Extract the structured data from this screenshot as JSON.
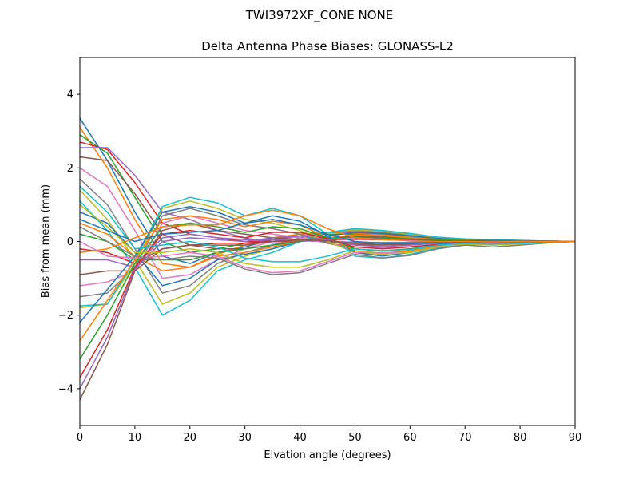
{
  "figure": {
    "suptitle": "TWI3972XF_CONE  NONE"
  },
  "chart_data": {
    "type": "line",
    "title": "Delta Antenna Phase Biases: GLONASS-L2",
    "xlabel": "Elvation angle (degrees)",
    "ylabel": "Bias from mean (mm)",
    "xlim": [
      0,
      90
    ],
    "ylim": [
      -5,
      5
    ],
    "x_ticks": [
      0,
      10,
      20,
      30,
      40,
      50,
      60,
      70,
      80,
      90
    ],
    "y_ticks": [
      -4,
      -2,
      0,
      2,
      4
    ],
    "x_tick_labels": [
      "0",
      "10",
      "20",
      "30",
      "40",
      "50",
      "60",
      "70",
      "80",
      "90"
    ],
    "y_tick_labels": [
      "−4",
      "−2",
      "0",
      "2",
      "4"
    ],
    "grid": false,
    "legend": "none",
    "x": [
      0,
      5,
      10,
      15,
      20,
      25,
      30,
      35,
      40,
      45,
      50,
      55,
      60,
      65,
      70,
      75,
      80,
      85,
      90
    ],
    "colors": [
      "#1f77b4",
      "#ff7f0e",
      "#2ca02c",
      "#d62728",
      "#9467bd",
      "#8c564b",
      "#e377c2",
      "#7f7f7f",
      "#bcbd22",
      "#17becf"
    ],
    "series": [
      {
        "values": [
          3.35,
          2.2,
          0.8,
          -0.4,
          -0.6,
          -0.3,
          -0.15,
          0.05,
          0.2,
          0.25,
          0.25,
          0.2,
          0.15,
          0.1,
          0.05,
          0.05,
          0.03,
          0.01,
          0
        ]
      },
      {
        "values": [
          3.1,
          2.0,
          0.6,
          -0.6,
          -0.7,
          -0.35,
          -0.1,
          0.1,
          0.2,
          0.25,
          0.22,
          0.18,
          0.12,
          0.08,
          0.05,
          0.04,
          0.02,
          0.01,
          0
        ]
      },
      {
        "values": [
          2.9,
          2.4,
          1.2,
          0.0,
          -0.3,
          -0.2,
          -0.05,
          0.05,
          0.15,
          0.2,
          0.2,
          0.15,
          0.1,
          0.06,
          0.04,
          0.03,
          0.02,
          0.01,
          0
        ]
      },
      {
        "values": [
          2.7,
          2.5,
          1.6,
          0.5,
          0.2,
          0.1,
          0.0,
          0.0,
          0.05,
          0.1,
          0.12,
          0.1,
          0.07,
          0.05,
          0.03,
          0.02,
          0.01,
          0.0,
          0
        ]
      },
      {
        "values": [
          2.55,
          2.55,
          1.8,
          0.8,
          0.6,
          0.3,
          0.1,
          -0.05,
          0.0,
          0.05,
          0.08,
          0.07,
          0.05,
          0.03,
          0.02,
          0.01,
          0.01,
          0.0,
          0
        ]
      },
      {
        "values": [
          2.3,
          2.2,
          1.3,
          0.2,
          -0.1,
          -0.2,
          -0.2,
          -0.1,
          0.0,
          0.1,
          0.15,
          0.12,
          0.08,
          0.05,
          0.03,
          0.02,
          0.01,
          0.0,
          0
        ]
      },
      {
        "values": [
          2.0,
          1.5,
          0.3,
          -1.0,
          -0.9,
          -0.5,
          -0.2,
          0.0,
          0.15,
          0.25,
          0.27,
          0.22,
          0.15,
          0.09,
          0.05,
          0.04,
          0.02,
          0.01,
          0
        ]
      },
      {
        "values": [
          1.7,
          1.0,
          -0.2,
          -1.4,
          -1.2,
          -0.6,
          -0.3,
          -0.1,
          0.1,
          0.25,
          0.3,
          0.25,
          0.18,
          0.1,
          0.06,
          0.04,
          0.02,
          0.01,
          0
        ]
      },
      {
        "values": [
          1.4,
          0.6,
          -0.5,
          -1.7,
          -1.4,
          -0.7,
          -0.4,
          -0.2,
          0.05,
          0.25,
          0.32,
          0.28,
          0.2,
          0.11,
          0.06,
          0.04,
          0.02,
          0.01,
          0
        ]
      },
      {
        "values": [
          1.1,
          0.3,
          -0.7,
          -2.0,
          -1.6,
          -0.8,
          -0.5,
          -0.3,
          0.0,
          0.25,
          0.35,
          0.3,
          0.22,
          0.12,
          0.07,
          0.05,
          0.02,
          0.01,
          0
        ]
      },
      {
        "values": [
          0.8,
          0.5,
          -0.3,
          -1.2,
          -1.0,
          -0.5,
          -0.35,
          -0.2,
          0.0,
          0.15,
          0.25,
          0.22,
          0.15,
          0.08,
          0.05,
          0.03,
          0.02,
          0.01,
          0
        ]
      },
      {
        "values": [
          0.5,
          0.2,
          -0.4,
          -0.8,
          -0.7,
          -0.4,
          -0.3,
          -0.15,
          0.0,
          0.1,
          0.18,
          0.16,
          0.1,
          0.06,
          0.04,
          0.02,
          0.01,
          0.0,
          0
        ]
      },
      {
        "values": [
          0.2,
          0.0,
          -0.5,
          -0.5,
          -0.5,
          -0.3,
          -0.2,
          -0.1,
          0.0,
          0.08,
          0.12,
          0.1,
          0.07,
          0.04,
          0.03,
          0.02,
          0.01,
          0.0,
          0
        ]
      },
      {
        "values": [
          -0.2,
          -0.3,
          -0.6,
          -0.2,
          -0.1,
          -0.05,
          -0.05,
          0.0,
          0.02,
          0.05,
          0.06,
          0.05,
          0.03,
          0.02,
          0.01,
          0.01,
          0.0,
          0.0,
          0
        ]
      },
      {
        "values": [
          -0.5,
          -0.5,
          -0.7,
          0.1,
          0.2,
          0.1,
          0.05,
          0.05,
          0.02,
          0.0,
          -0.02,
          -0.03,
          -0.02,
          -0.01,
          -0.01,
          0.0,
          0.0,
          0.0,
          0
        ]
      },
      {
        "values": [
          -0.9,
          -0.8,
          -0.8,
          0.3,
          0.5,
          0.3,
          0.2,
          0.1,
          0.05,
          -0.02,
          -0.08,
          -0.1,
          -0.08,
          -0.05,
          -0.03,
          -0.02,
          -0.01,
          0.0,
          0
        ]
      },
      {
        "values": [
          -1.2,
          -1.1,
          -0.8,
          0.5,
          0.7,
          0.5,
          0.3,
          0.2,
          0.1,
          -0.05,
          -0.15,
          -0.18,
          -0.14,
          -0.08,
          -0.05,
          -0.03,
          -0.02,
          -0.01,
          0
        ]
      },
      {
        "values": [
          -1.5,
          -1.4,
          -0.7,
          0.7,
          0.9,
          0.7,
          0.45,
          0.35,
          0.2,
          -0.05,
          -0.2,
          -0.25,
          -0.2,
          -0.12,
          -0.07,
          -0.05,
          -0.03,
          -0.01,
          0
        ]
      },
      {
        "values": [
          -1.8,
          -1.7,
          -0.6,
          0.9,
          1.1,
          0.9,
          0.6,
          0.5,
          0.3,
          0.0,
          -0.3,
          -0.35,
          -0.28,
          -0.15,
          -0.08,
          -0.06,
          -0.03,
          -0.01,
          0
        ]
      },
      {
        "values": [
          -1.75,
          -1.7,
          -0.5,
          0.95,
          1.2,
          1.05,
          0.7,
          0.9,
          0.7,
          0.2,
          -0.4,
          -0.45,
          -0.35,
          -0.18,
          -0.1,
          -0.07,
          -0.04,
          -0.02,
          0
        ]
      },
      {
        "values": [
          -2.2,
          -1.3,
          -0.4,
          0.8,
          0.95,
          0.8,
          0.5,
          0.7,
          0.55,
          0.15,
          -0.3,
          -0.4,
          -0.3,
          -0.15,
          -0.08,
          -0.05,
          -0.03,
          -0.01,
          0
        ]
      },
      {
        "values": [
          -2.7,
          -1.6,
          -0.5,
          0.6,
          0.7,
          0.6,
          0.4,
          0.55,
          0.45,
          0.1,
          -0.25,
          -0.32,
          -0.25,
          -0.12,
          -0.07,
          -0.05,
          -0.02,
          -0.01,
          0
        ]
      },
      {
        "values": [
          -3.2,
          -2.0,
          -0.6,
          0.4,
          0.5,
          0.4,
          0.25,
          0.4,
          0.35,
          0.1,
          -0.2,
          -0.26,
          -0.2,
          -0.1,
          -0.06,
          -0.04,
          -0.02,
          -0.01,
          0
        ]
      },
      {
        "values": [
          -3.7,
          -2.4,
          -0.7,
          0.2,
          0.3,
          0.2,
          0.1,
          0.25,
          0.25,
          0.08,
          -0.15,
          -0.2,
          -0.15,
          -0.08,
          -0.05,
          -0.03,
          -0.01,
          0.0,
          0
        ]
      },
      {
        "values": [
          -4.0,
          -2.6,
          -0.75,
          0.0,
          0.1,
          0.05,
          0.0,
          0.1,
          0.15,
          0.05,
          -0.1,
          -0.14,
          -0.1,
          -0.05,
          -0.03,
          -0.02,
          -0.01,
          0.0,
          0
        ]
      },
      {
        "values": [
          -4.3,
          -2.8,
          -0.8,
          -0.2,
          -0.1,
          -0.1,
          -0.1,
          0.0,
          0.05,
          0.02,
          -0.05,
          -0.08,
          -0.06,
          -0.03,
          -0.02,
          -0.01,
          0.0,
          0.0,
          0
        ]
      },
      {
        "values": [
          0.0,
          -0.4,
          -0.45,
          -0.4,
          -0.3,
          -0.4,
          -0.7,
          -0.85,
          -0.8,
          -0.55,
          -0.3,
          -0.3,
          -0.3,
          -0.15,
          -0.05,
          -0.05,
          -0.03,
          -0.01,
          0
        ]
      },
      {
        "values": [
          0.4,
          0.0,
          -0.4,
          -0.5,
          -0.4,
          -0.45,
          -0.75,
          -0.9,
          -0.85,
          -0.6,
          -0.35,
          -0.45,
          -0.38,
          -0.2,
          -0.1,
          -0.15,
          -0.1,
          -0.04,
          0
        ]
      },
      {
        "values": [
          1.0,
          0.4,
          -0.3,
          -0.3,
          -0.2,
          -0.3,
          -0.6,
          -0.7,
          -0.7,
          -0.5,
          -0.25,
          -0.35,
          -0.3,
          -0.15,
          -0.07,
          -0.1,
          -0.07,
          -0.03,
          0
        ]
      },
      {
        "values": [
          1.5,
          0.8,
          -0.2,
          -0.1,
          0.0,
          -0.15,
          -0.45,
          -0.55,
          -0.55,
          -0.4,
          -0.2,
          -0.25,
          -0.22,
          -0.1,
          -0.05,
          -0.07,
          -0.05,
          -0.02,
          0
        ]
      },
      {
        "values": [
          0.6,
          0.3,
          0.0,
          0.2,
          0.25,
          0.3,
          0.5,
          0.6,
          0.45,
          0.2,
          0.0,
          -0.05,
          -0.05,
          -0.03,
          -0.02,
          -0.02,
          -0.01,
          0.0,
          0
        ]
      },
      {
        "values": [
          -0.3,
          -0.2,
          0.1,
          0.4,
          0.45,
          0.45,
          0.7,
          0.85,
          0.7,
          0.35,
          0.1,
          0.05,
          0.02,
          0.0,
          0.0,
          -0.01,
          0.0,
          0.0,
          0
        ]
      }
    ]
  }
}
